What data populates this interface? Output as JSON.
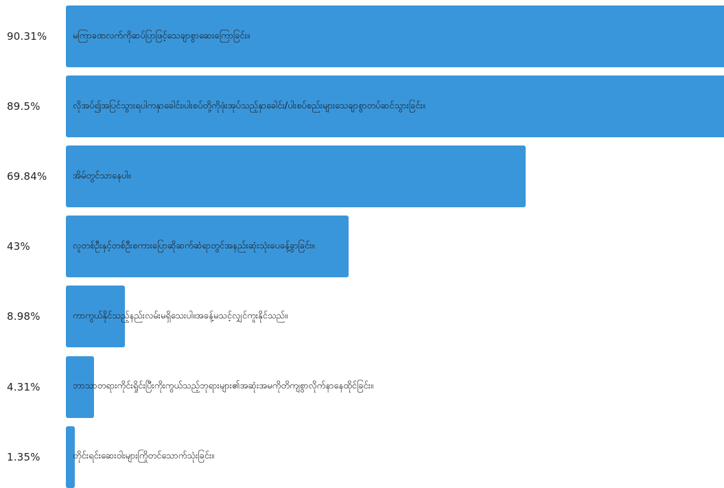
{
  "chart_data": {
    "type": "bar",
    "orientation": "horizontal",
    "bar_color": "#3a96db",
    "xlim": [
      0,
      100
    ],
    "bars": [
      {
        "percent_label": "90.31%",
        "value": 90.31,
        "label": "မကြာခဏလက်ကိုဆပ်ပြာဖြင့်သေချာစွာဆေးကြောခြင်း။"
      },
      {
        "percent_label": "89.5%",
        "value": 89.5,
        "label": "လိုအပ်၍အပြင်သွားရပါကနှာခေါင်း၊ပါးစပ်တို့ကိုဖုံးအုပ်သည့်နှာခေါင်း/ပါးစပ်စည်းများသေချာစွာတပ်ဆင်သွားခြင်း။"
      },
      {
        "percent_label": "69.84%",
        "value": 69.84,
        "label": "အိမ်တွင်သာနေပါ။"
      },
      {
        "percent_label": "43%",
        "value": 43,
        "label": "လူတစ်ဦးနှင့်တစ်ဦးစကားပြောဆိုဆက်ဆံရာတွင်အနည်းဆုံးသုံးပေခန့်ခွာခြင်း။"
      },
      {
        "percent_label": "8.98%",
        "value": 8.98,
        "label": "ကာကွယ်နိုင်သည့်နည်းလမ်းမရှိသေးပါ။အခန့်မသင့်လျှင်ကူးနိုင်သည်။"
      },
      {
        "percent_label": "4.31%",
        "value": 4.31,
        "label": "ဘာသာတရားကိုင်းရှိုင်းပြီးကိုးကွယ်သည့်ဘုရားများ၏အဆုံးအမကိုတိကျစွာလိုက်နာနေထိုင်ခြင်း။"
      },
      {
        "percent_label": "1.35%",
        "value": 1.35,
        "label": "တိုင်းရင်းဆေးဝါးများကြိုတင်သောက်သုံးခြင်း။"
      }
    ]
  }
}
